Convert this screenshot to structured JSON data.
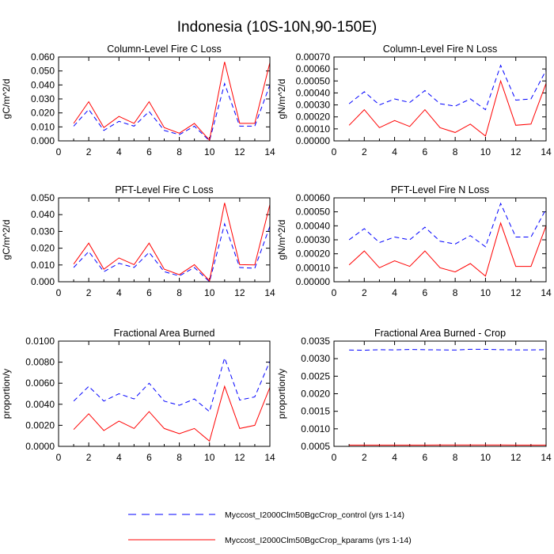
{
  "figure": {
    "title": "Indonesia (10S-10N,90-150E)",
    "legend": [
      {
        "label": "Myccost_I2000Clm50BgcCrop_control (yrs 1-14)",
        "color": "#0000ff",
        "dash": "dashed"
      },
      {
        "label": "Myccost_I2000Clm50BgcCrop_kparams (yrs 1-14)",
        "color": "#ff0000",
        "dash": "solid"
      }
    ]
  },
  "chart_data": [
    {
      "type": "line",
      "title": "Column-Level Fire C Loss",
      "xlabel": "",
      "ylabel": "gC/m^2/d",
      "xlim": [
        0,
        14
      ],
      "ylim": [
        0,
        0.06
      ],
      "xticks": [
        "0",
        "2",
        "4",
        "6",
        "8",
        "10",
        "12",
        "14"
      ],
      "xtick_values": [
        0,
        2,
        4,
        6,
        8,
        10,
        12,
        14
      ],
      "yticks": [
        "0.000",
        "0.010",
        "0.020",
        "0.030",
        "0.040",
        "0.050",
        "0.060"
      ],
      "ytick_values": [
        0,
        0.01,
        0.02,
        0.03,
        0.04,
        0.05,
        0.06
      ],
      "x": [
        1,
        2,
        3,
        4,
        5,
        6,
        7,
        8,
        9,
        10,
        11,
        12,
        13,
        14
      ],
      "series": [
        {
          "name": "Myccost_I2000Clm50BgcCrop_control (yrs 1-14)",
          "color": "#0000ff",
          "dash": "dashed",
          "values": [
            0.0105,
            0.0225,
            0.0075,
            0.014,
            0.0105,
            0.021,
            0.0075,
            0.0045,
            0.0105,
            0.0,
            0.041,
            0.0105,
            0.0105,
            0.04
          ]
        },
        {
          "name": "Myccost_I2000Clm50BgcCrop_kparams (yrs 1-14)",
          "color": "#ff0000",
          "dash": "solid",
          "values": [
            0.0125,
            0.028,
            0.0095,
            0.0175,
            0.0125,
            0.028,
            0.0095,
            0.0055,
            0.0125,
            0.0005,
            0.0565,
            0.0125,
            0.0125,
            0.056
          ]
        }
      ]
    },
    {
      "type": "line",
      "title": "Column-Level Fire N Loss",
      "xlabel": "",
      "ylabel": "gN/m^2/d",
      "xlim": [
        0,
        14
      ],
      "ylim": [
        0,
        0.0007
      ],
      "xticks": [
        "0",
        "2",
        "4",
        "6",
        "8",
        "10",
        "12",
        "14"
      ],
      "xtick_values": [
        0,
        2,
        4,
        6,
        8,
        10,
        12,
        14
      ],
      "yticks": [
        "0.00000",
        "0.00010",
        "0.00020",
        "0.00030",
        "0.00040",
        "0.00050",
        "0.00060",
        "0.00070"
      ],
      "ytick_values": [
        0,
        0.0001,
        0.0002,
        0.0003,
        0.0004,
        0.0005,
        0.0006,
        0.0007
      ],
      "x": [
        1,
        2,
        3,
        4,
        5,
        6,
        7,
        8,
        9,
        10,
        11,
        12,
        13,
        14
      ],
      "series": [
        {
          "name": "Myccost_I2000Clm50BgcCrop_control (yrs 1-14)",
          "color": "#0000ff",
          "dash": "dashed",
          "values": [
            0.00031,
            0.00041,
            0.0003,
            0.00035,
            0.00032,
            0.00042,
            0.00031,
            0.00029,
            0.00035,
            0.00026,
            0.00063,
            0.00034,
            0.00035,
            0.00059
          ]
        },
        {
          "name": "Myccost_I2000Clm50BgcCrop_kparams (yrs 1-14)",
          "color": "#ff0000",
          "dash": "solid",
          "values": [
            0.00013,
            0.00026,
            0.00011,
            0.00017,
            0.00012,
            0.00026,
            0.00011,
            7e-05,
            0.00014,
            4e-05,
            0.0005,
            0.00013,
            0.00014,
            0.00048
          ]
        }
      ]
    },
    {
      "type": "line",
      "title": "PFT-Level Fire C Loss",
      "xlabel": "",
      "ylabel": "gC/m^2/d",
      "xlim": [
        0,
        14
      ],
      "ylim": [
        0,
        0.05
      ],
      "xticks": [
        "0",
        "2",
        "4",
        "6",
        "8",
        "10",
        "12",
        "14"
      ],
      "xtick_values": [
        0,
        2,
        4,
        6,
        8,
        10,
        12,
        14
      ],
      "yticks": [
        "0.000",
        "0.010",
        "0.020",
        "0.030",
        "0.040",
        "0.050"
      ],
      "ytick_values": [
        0,
        0.01,
        0.02,
        0.03,
        0.04,
        0.05
      ],
      "x": [
        1,
        2,
        3,
        4,
        5,
        6,
        7,
        8,
        9,
        10,
        11,
        12,
        13,
        14
      ],
      "series": [
        {
          "name": "Myccost_I2000Clm50BgcCrop_control (yrs 1-14)",
          "color": "#0000ff",
          "dash": "dashed",
          "values": [
            0.0085,
            0.018,
            0.006,
            0.011,
            0.0085,
            0.0175,
            0.006,
            0.0035,
            0.0085,
            0.0,
            0.0345,
            0.0085,
            0.008,
            0.033
          ]
        },
        {
          "name": "Myccost_I2000Clm50BgcCrop_kparams (yrs 1-14)",
          "color": "#ff0000",
          "dash": "solid",
          "values": [
            0.0105,
            0.023,
            0.0075,
            0.0142,
            0.0102,
            0.023,
            0.0075,
            0.0042,
            0.0102,
            0.0005,
            0.047,
            0.0102,
            0.01,
            0.046
          ]
        }
      ]
    },
    {
      "type": "line",
      "title": "PFT-Level Fire N Loss",
      "xlabel": "",
      "ylabel": "gN/m^2/d",
      "xlim": [
        0,
        14
      ],
      "ylim": [
        0,
        0.0006
      ],
      "xticks": [
        "0",
        "2",
        "4",
        "6",
        "8",
        "10",
        "12",
        "14"
      ],
      "xtick_values": [
        0,
        2,
        4,
        6,
        8,
        10,
        12,
        14
      ],
      "yticks": [
        "0.00000",
        "0.00010",
        "0.00020",
        "0.00030",
        "0.00040",
        "0.00050",
        "0.00060"
      ],
      "ytick_values": [
        0,
        0.0001,
        0.0002,
        0.0003,
        0.0004,
        0.0005,
        0.0006
      ],
      "x": [
        1,
        2,
        3,
        4,
        5,
        6,
        7,
        8,
        9,
        10,
        11,
        12,
        13,
        14
      ],
      "series": [
        {
          "name": "Myccost_I2000Clm50BgcCrop_control (yrs 1-14)",
          "color": "#0000ff",
          "dash": "dashed",
          "values": [
            0.0003,
            0.00038,
            0.00028,
            0.00032,
            0.0003,
            0.00039,
            0.00029,
            0.00027,
            0.00033,
            0.00025,
            0.00056,
            0.00032,
            0.00032,
            0.00052
          ]
        },
        {
          "name": "Myccost_I2000Clm50BgcCrop_kparams (yrs 1-14)",
          "color": "#ff0000",
          "dash": "solid",
          "values": [
            0.00012,
            0.00022,
            0.0001,
            0.00015,
            0.00011,
            0.00022,
            0.0001,
            7e-05,
            0.00013,
            4e-05,
            0.00042,
            0.00011,
            0.00011,
            0.0004
          ]
        }
      ]
    },
    {
      "type": "line",
      "title": "Fractional Area Burned",
      "xlabel": "",
      "ylabel": "proportion/y",
      "xlim": [
        0,
        14
      ],
      "ylim": [
        0,
        0.01
      ],
      "xticks": [
        "0",
        "2",
        "4",
        "6",
        "8",
        "10",
        "12",
        "14"
      ],
      "xtick_values": [
        0,
        2,
        4,
        6,
        8,
        10,
        12,
        14
      ],
      "yticks": [
        "0.0000",
        "0.0020",
        "0.0040",
        "0.0060",
        "0.0080",
        "0.0100"
      ],
      "ytick_values": [
        0,
        0.002,
        0.004,
        0.006,
        0.008,
        0.01
      ],
      "x": [
        1,
        2,
        3,
        4,
        5,
        6,
        7,
        8,
        9,
        10,
        11,
        12,
        13,
        14
      ],
      "series": [
        {
          "name": "Myccost_I2000Clm50BgcCrop_control (yrs 1-14)",
          "color": "#0000ff",
          "dash": "dashed",
          "values": [
            0.0043,
            0.0057,
            0.0043,
            0.005,
            0.0045,
            0.006,
            0.0043,
            0.0039,
            0.0045,
            0.0033,
            0.0084,
            0.0044,
            0.0047,
            0.0081
          ]
        },
        {
          "name": "Myccost_I2000Clm50BgcCrop_kparams (yrs 1-14)",
          "color": "#ff0000",
          "dash": "solid",
          "values": [
            0.0016,
            0.0031,
            0.0015,
            0.0024,
            0.0017,
            0.0033,
            0.0017,
            0.0012,
            0.0017,
            0.0005,
            0.0057,
            0.0017,
            0.002,
            0.0056
          ]
        }
      ]
    },
    {
      "type": "line",
      "title": "Fractional Area Burned - Crop",
      "xlabel": "",
      "ylabel": "proportion/y",
      "xlim": [
        0,
        14
      ],
      "ylim": [
        0.0005,
        0.0035
      ],
      "xticks": [
        "0",
        "2",
        "4",
        "6",
        "8",
        "10",
        "12",
        "14"
      ],
      "xtick_values": [
        0,
        2,
        4,
        6,
        8,
        10,
        12,
        14
      ],
      "yticks": [
        "0.0005",
        "0.0010",
        "0.0015",
        "0.0020",
        "0.0025",
        "0.0030",
        "0.0035"
      ],
      "ytick_values": [
        0.0005,
        0.001,
        0.0015,
        0.002,
        0.0025,
        0.003,
        0.0035
      ],
      "x": [
        1,
        2,
        3,
        4,
        5,
        6,
        7,
        8,
        9,
        10,
        11,
        12,
        13,
        14
      ],
      "series": [
        {
          "name": "Myccost_I2000Clm50BgcCrop_control (yrs 1-14)",
          "color": "#0000ff",
          "dash": "dashed",
          "values": [
            0.003245,
            0.00324,
            0.003255,
            0.00325,
            0.00326,
            0.003255,
            0.00325,
            0.003245,
            0.003265,
            0.003265,
            0.003255,
            0.00325,
            0.00325,
            0.003255
          ]
        },
        {
          "name": "Myccost_I2000Clm50BgcCrop_kparams (yrs 1-14)",
          "color": "#ff0000",
          "dash": "solid",
          "values": [
            0.000535,
            0.000535,
            0.000535,
            0.000535,
            0.000535,
            0.000535,
            0.00054,
            0.00054,
            0.00054,
            0.00054,
            0.00054,
            0.000535,
            0.000535,
            0.000535
          ]
        }
      ]
    }
  ]
}
